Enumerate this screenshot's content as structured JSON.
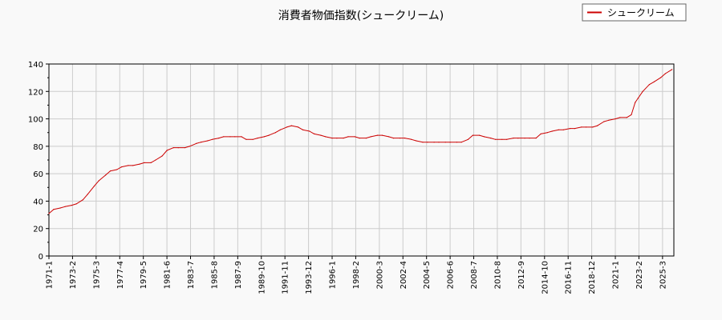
{
  "chart_data": {
    "type": "line",
    "title": "消費者物価指数(シュークリーム)",
    "xlabel": "",
    "ylabel": "",
    "ylim": [
      0,
      140
    ],
    "yticks": [
      0,
      20,
      40,
      60,
      80,
      100,
      120,
      140
    ],
    "xlim": [
      "1971-01",
      "2026-03"
    ],
    "xtick_labels": [
      "1971-1",
      "1973-2",
      "1975-3",
      "1977-4",
      "1979-5",
      "1981-6",
      "1983-7",
      "1985-8",
      "1987-9",
      "1989-10",
      "1991-11",
      "1993-12",
      "1996-1",
      "1998-2",
      "2000-3",
      "2002-4",
      "2004-5",
      "2006-6",
      "2008-7",
      "2010-8",
      "2012-9",
      "2014-10",
      "2016-11",
      "2018-12",
      "2021-1",
      "2023-2",
      "2025-3"
    ],
    "grid": true,
    "legend": "top-right",
    "series": [
      {
        "name": "シュークリーム",
        "color": "#cc0000",
        "points": [
          [
            "1971-01",
            31
          ],
          [
            "1971-06",
            34
          ],
          [
            "1972-01",
            35
          ],
          [
            "1972-06",
            36
          ],
          [
            "1973-01",
            37
          ],
          [
            "1973-06",
            38
          ],
          [
            "1974-01",
            41
          ],
          [
            "1974-06",
            45
          ],
          [
            "1975-01",
            51
          ],
          [
            "1975-06",
            55
          ],
          [
            "1976-01",
            59
          ],
          [
            "1976-06",
            62
          ],
          [
            "1977-01",
            63
          ],
          [
            "1977-06",
            65
          ],
          [
            "1978-01",
            66
          ],
          [
            "1978-06",
            66
          ],
          [
            "1979-01",
            67
          ],
          [
            "1979-06",
            68
          ],
          [
            "1980-01",
            68
          ],
          [
            "1980-06",
            70
          ],
          [
            "1981-01",
            73
          ],
          [
            "1981-06",
            77
          ],
          [
            "1982-01",
            79
          ],
          [
            "1982-06",
            79
          ],
          [
            "1983-01",
            79
          ],
          [
            "1983-06",
            80
          ],
          [
            "1984-01",
            82
          ],
          [
            "1984-06",
            83
          ],
          [
            "1985-01",
            84
          ],
          [
            "1985-06",
            85
          ],
          [
            "1986-01",
            86
          ],
          [
            "1986-06",
            87
          ],
          [
            "1987-01",
            87
          ],
          [
            "1987-06",
            87
          ],
          [
            "1988-01",
            87
          ],
          [
            "1988-06",
            85
          ],
          [
            "1989-01",
            85
          ],
          [
            "1989-06",
            86
          ],
          [
            "1990-01",
            87
          ],
          [
            "1990-06",
            88
          ],
          [
            "1991-01",
            90
          ],
          [
            "1991-06",
            92
          ],
          [
            "1992-01",
            94
          ],
          [
            "1992-06",
            95
          ],
          [
            "1993-01",
            94
          ],
          [
            "1993-06",
            92
          ],
          [
            "1994-01",
            91
          ],
          [
            "1994-06",
            89
          ],
          [
            "1995-01",
            88
          ],
          [
            "1995-06",
            87
          ],
          [
            "1996-01",
            86
          ],
          [
            "1996-06",
            86
          ],
          [
            "1997-01",
            86
          ],
          [
            "1997-06",
            87
          ],
          [
            "1998-01",
            87
          ],
          [
            "1998-06",
            86
          ],
          [
            "1999-01",
            86
          ],
          [
            "1999-06",
            87
          ],
          [
            "2000-01",
            88
          ],
          [
            "2000-06",
            88
          ],
          [
            "2001-01",
            87
          ],
          [
            "2001-06",
            86
          ],
          [
            "2002-01",
            86
          ],
          [
            "2002-06",
            86
          ],
          [
            "2003-01",
            85
          ],
          [
            "2003-06",
            84
          ],
          [
            "2004-01",
            83
          ],
          [
            "2004-06",
            83
          ],
          [
            "2005-01",
            83
          ],
          [
            "2005-06",
            83
          ],
          [
            "2006-01",
            83
          ],
          [
            "2006-06",
            83
          ],
          [
            "2007-01",
            83
          ],
          [
            "2007-06",
            83
          ],
          [
            "2008-01",
            85
          ],
          [
            "2008-06",
            88
          ],
          [
            "2009-01",
            88
          ],
          [
            "2009-06",
            87
          ],
          [
            "2010-01",
            86
          ],
          [
            "2010-06",
            85
          ],
          [
            "2011-01",
            85
          ],
          [
            "2011-06",
            85
          ],
          [
            "2012-01",
            86
          ],
          [
            "2012-06",
            86
          ],
          [
            "2013-01",
            86
          ],
          [
            "2013-06",
            86
          ],
          [
            "2014-01",
            86
          ],
          [
            "2014-06",
            89
          ],
          [
            "2015-01",
            90
          ],
          [
            "2015-06",
            91
          ],
          [
            "2016-01",
            92
          ],
          [
            "2016-06",
            92
          ],
          [
            "2017-01",
            93
          ],
          [
            "2017-06",
            93
          ],
          [
            "2018-01",
            94
          ],
          [
            "2018-06",
            94
          ],
          [
            "2019-01",
            94
          ],
          [
            "2019-06",
            95
          ],
          [
            "2020-01",
            98
          ],
          [
            "2020-06",
            99
          ],
          [
            "2021-01",
            100
          ],
          [
            "2021-06",
            101
          ],
          [
            "2022-01",
            101
          ],
          [
            "2022-06",
            103
          ],
          [
            "2022-10",
            112
          ],
          [
            "2023-01",
            115
          ],
          [
            "2023-06",
            120
          ],
          [
            "2024-01",
            125
          ],
          [
            "2024-06",
            127
          ],
          [
            "2025-01",
            130
          ],
          [
            "2025-06",
            133
          ],
          [
            "2026-01",
            136
          ]
        ]
      }
    ]
  }
}
